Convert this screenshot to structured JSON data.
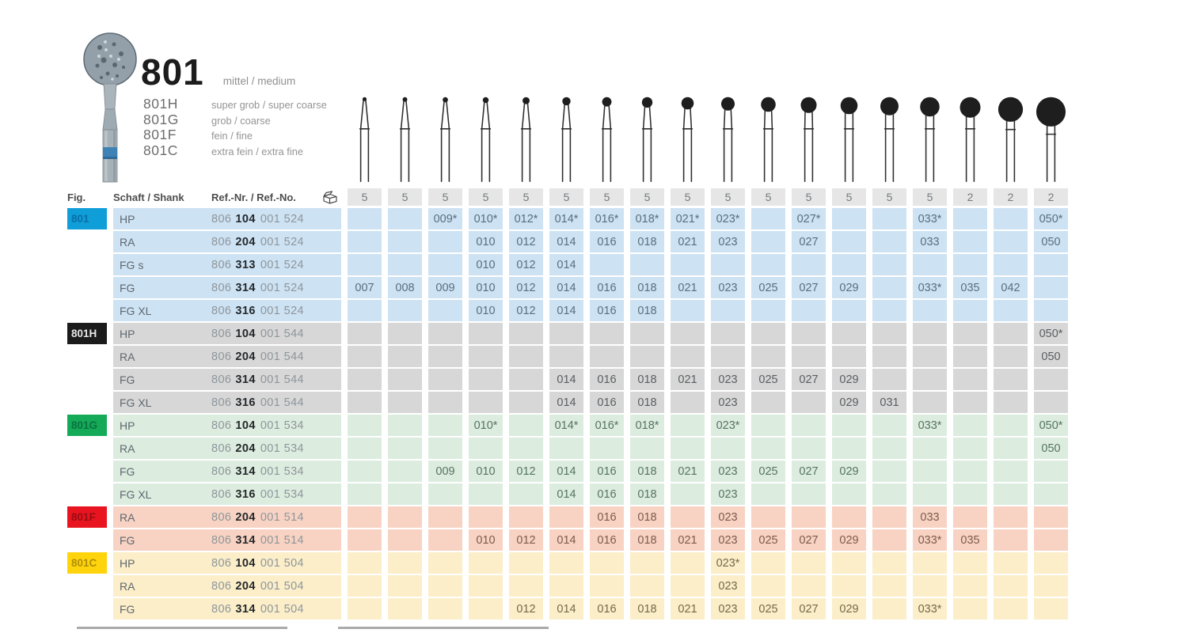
{
  "legend": {
    "title": "801",
    "title_grit": "mittel / medium",
    "variants": [
      {
        "code": "801H",
        "grit": "super grob / super coarse"
      },
      {
        "code": "801G",
        "grit": "grob / coarse"
      },
      {
        "code": "801F",
        "grit": "fein / fine"
      },
      {
        "code": "801C",
        "grit": "extra fein / extra fine"
      }
    ]
  },
  "table": {
    "header": {
      "fig": "Fig.",
      "shank": "Schaft / Shank",
      "ref": "Ref.-Nr. / Ref.-No.",
      "pack_icon": "package-icon"
    },
    "column_sizes": [
      7,
      8,
      9,
      10,
      12,
      14,
      16,
      18,
      21,
      23,
      25,
      27,
      29,
      31,
      33,
      35,
      42,
      50
    ],
    "pack_quantities": [
      "5",
      "5",
      "5",
      "5",
      "5",
      "5",
      "5",
      "5",
      "5",
      "5",
      "5",
      "5",
      "5",
      "5",
      "5",
      "2",
      "2",
      "2"
    ],
    "colors": {
      "qty_box_bg": "#e6e6e6"
    },
    "sections": [
      {
        "fig": "801",
        "chip_bg": "#0f9ed8",
        "chip_text": "#0a6fa8",
        "row_bg": "#cde2f3",
        "cell_text": "#57707f",
        "rows": [
          {
            "shank": "HP",
            "ref": {
              "prefix": "806",
              "bold": "104",
              "suffix": "001 524"
            },
            "cells": [
              "",
              "",
              "009*",
              "010*",
              "012*",
              "014*",
              "016*",
              "018*",
              "021*",
              "023*",
              "",
              "027*",
              "",
              "",
              "033*",
              "",
              "",
              "050*"
            ]
          },
          {
            "shank": "RA",
            "ref": {
              "prefix": "806",
              "bold": "204",
              "suffix": "001 524"
            },
            "cells": [
              "",
              "",
              "",
              "010",
              "012",
              "014",
              "016",
              "018",
              "021",
              "023",
              "",
              "027",
              "",
              "",
              "033",
              "",
              "",
              "050"
            ]
          },
          {
            "shank": "FG s",
            "ref": {
              "prefix": "806",
              "bold": "313",
              "suffix": "001 524"
            },
            "cells": [
              "",
              "",
              "",
              "010",
              "012",
              "014",
              "",
              "",
              "",
              "",
              "",
              "",
              "",
              "",
              "",
              "",
              "",
              ""
            ]
          },
          {
            "shank": "FG",
            "ref": {
              "prefix": "806",
              "bold": "314",
              "suffix": "001 524"
            },
            "cells": [
              "007",
              "008",
              "009",
              "010",
              "012",
              "014",
              "016",
              "018",
              "021",
              "023",
              "025",
              "027",
              "029",
              "",
              "033*",
              "035",
              "042",
              ""
            ]
          },
          {
            "shank": "FG XL",
            "ref": {
              "prefix": "806",
              "bold": "316",
              "suffix": "001 524"
            },
            "cells": [
              "",
              "",
              "",
              "010",
              "012",
              "014",
              "016",
              "018",
              "",
              "",
              "",
              "",
              "",
              "",
              "",
              "",
              "",
              ""
            ]
          }
        ]
      },
      {
        "fig": "801H",
        "chip_bg": "#1b1b1b",
        "chip_text": "#e8e8e8",
        "row_bg": "#d7d7d7",
        "cell_text": "#5a5e61",
        "rows": [
          {
            "shank": "HP",
            "ref": {
              "prefix": "806",
              "bold": "104",
              "suffix": "001 544"
            },
            "cells": [
              "",
              "",
              "",
              "",
              "",
              "",
              "",
              "",
              "",
              "",
              "",
              "",
              "",
              "",
              "",
              "",
              "",
              "050*"
            ]
          },
          {
            "shank": "RA",
            "ref": {
              "prefix": "806",
              "bold": "204",
              "suffix": "001 544"
            },
            "cells": [
              "",
              "",
              "",
              "",
              "",
              "",
              "",
              "",
              "",
              "",
              "",
              "",
              "",
              "",
              "",
              "",
              "",
              "050"
            ]
          },
          {
            "shank": "FG",
            "ref": {
              "prefix": "806",
              "bold": "314",
              "suffix": "001 544"
            },
            "cells": [
              "",
              "",
              "",
              "",
              "",
              "014",
              "016",
              "018",
              "021",
              "023",
              "025",
              "027",
              "029",
              "",
              "",
              "",
              "",
              ""
            ]
          },
          {
            "shank": "FG XL",
            "ref": {
              "prefix": "806",
              "bold": "316",
              "suffix": "001 544"
            },
            "cells": [
              "",
              "",
              "",
              "",
              "",
              "014",
              "016",
              "018",
              "",
              "023",
              "",
              "",
              "029",
              "031",
              "",
              "",
              "",
              ""
            ]
          }
        ]
      },
      {
        "fig": "801G",
        "chip_bg": "#14aa58",
        "chip_text": "#0a7440",
        "row_bg": "#dcecdf",
        "cell_text": "#567463",
        "rows": [
          {
            "shank": "HP",
            "ref": {
              "prefix": "806",
              "bold": "104",
              "suffix": "001 534"
            },
            "cells": [
              "",
              "",
              "",
              "010*",
              "",
              "014*",
              "016*",
              "018*",
              "",
              "023*",
              "",
              "",
              "",
              "",
              "033*",
              "",
              "",
              "050*"
            ]
          },
          {
            "shank": "RA",
            "ref": {
              "prefix": "806",
              "bold": "204",
              "suffix": "001 534"
            },
            "cells": [
              "",
              "",
              "",
              "",
              "",
              "",
              "",
              "",
              "",
              "",
              "",
              "",
              "",
              "",
              "",
              "",
              "",
              "050"
            ]
          },
          {
            "shank": "FG",
            "ref": {
              "prefix": "806",
              "bold": "314",
              "suffix": "001 534"
            },
            "cells": [
              "",
              "",
              "009",
              "010",
              "012",
              "014",
              "016",
              "018",
              "021",
              "023",
              "025",
              "027",
              "029",
              "",
              "",
              "",
              "",
              ""
            ]
          },
          {
            "shank": "FG XL",
            "ref": {
              "prefix": "806",
              "bold": "316",
              "suffix": "001 534"
            },
            "cells": [
              "",
              "",
              "",
              "",
              "",
              "014",
              "016",
              "018",
              "",
              "023",
              "",
              "",
              "",
              "",
              "",
              "",
              "",
              ""
            ]
          }
        ]
      },
      {
        "fig": "801F",
        "chip_bg": "#e81420",
        "chip_text": "#9a0d12",
        "row_bg": "#f8d3c3",
        "cell_text": "#7d5a4e",
        "rows": [
          {
            "shank": "RA",
            "ref": {
              "prefix": "806",
              "bold": "204",
              "suffix": "001 514"
            },
            "cells": [
              "",
              "",
              "",
              "",
              "",
              "",
              "016",
              "018",
              "",
              "023",
              "",
              "",
              "",
              "",
              "033",
              "",
              "",
              ""
            ]
          },
          {
            "shank": "FG",
            "ref": {
              "prefix": "806",
              "bold": "314",
              "suffix": "001 514"
            },
            "cells": [
              "",
              "",
              "",
              "010",
              "012",
              "014",
              "016",
              "018",
              "021",
              "023",
              "025",
              "027",
              "029",
              "",
              "033*",
              "035",
              "",
              ""
            ]
          }
        ]
      },
      {
        "fig": "801C",
        "chip_bg": "#ffd40d",
        "chip_text": "#b08f06",
        "row_bg": "#fbeec9",
        "cell_text": "#76694a",
        "rows": [
          {
            "shank": "HP",
            "ref": {
              "prefix": "806",
              "bold": "104",
              "suffix": "001 504"
            },
            "cells": [
              "",
              "",
              "",
              "",
              "",
              "",
              "",
              "",
              "",
              "023*",
              "",
              "",
              "",
              "",
              "",
              "",
              "",
              ""
            ]
          },
          {
            "shank": "RA",
            "ref": {
              "prefix": "806",
              "bold": "204",
              "suffix": "001 504"
            },
            "cells": [
              "",
              "",
              "",
              "",
              "",
              "",
              "",
              "",
              "",
              "023",
              "",
              "",
              "",
              "",
              "",
              "",
              "",
              ""
            ]
          },
          {
            "shank": "FG",
            "ref": {
              "prefix": "806",
              "bold": "314",
              "suffix": "001 504"
            },
            "cells": [
              "",
              "",
              "",
              "",
              "012",
              "014",
              "016",
              "018",
              "021",
              "023",
              "025",
              "027",
              "029",
              "",
              "033*",
              "",
              "",
              ""
            ]
          }
        ]
      }
    ]
  }
}
